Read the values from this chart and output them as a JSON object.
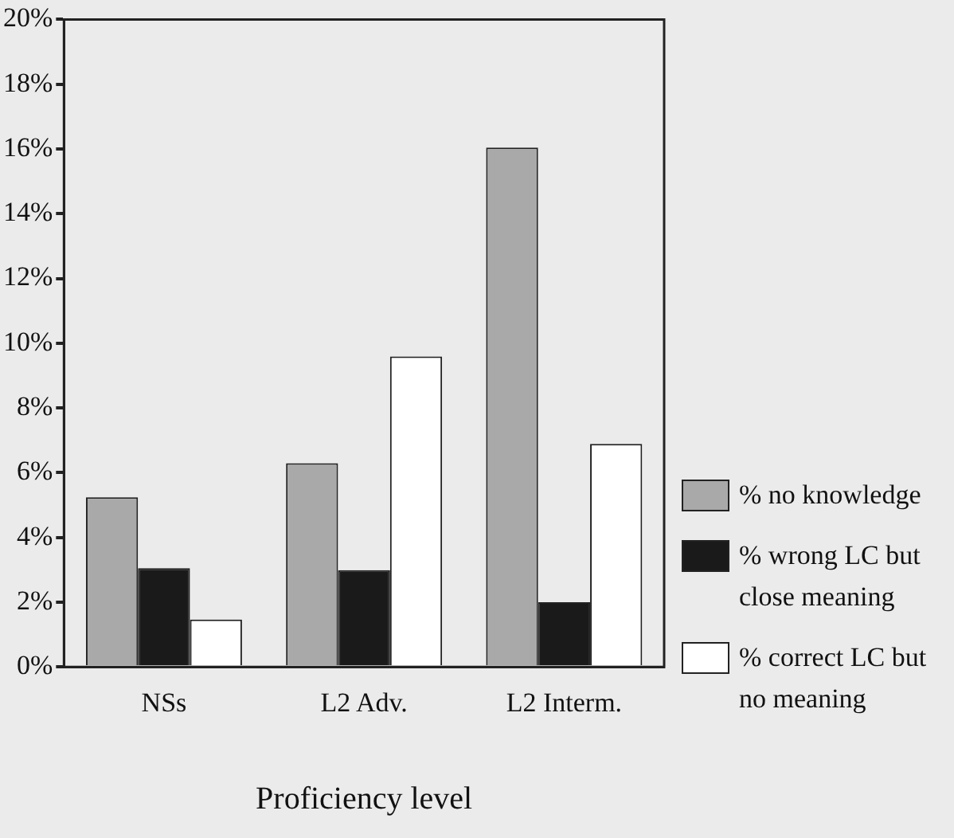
{
  "chart_data": {
    "type": "bar",
    "xlabel": "Proficiency level",
    "categories": [
      "NSs",
      "L2 Adv.",
      "L2 Interm."
    ],
    "series": [
      {
        "name": "% no knowledge",
        "color": "#a9a9a9",
        "values": [
          5.24,
          6.29,
          16.04
        ]
      },
      {
        "name": "% wrong LC but close meaning",
        "color": "#1a1a1a",
        "values": [
          3.05,
          2.99,
          2.0
        ]
      },
      {
        "name": "% correct LC but no meaning",
        "color": "#ffffff",
        "values": [
          1.46,
          9.59,
          6.89
        ]
      }
    ],
    "ylim": [
      0,
      20
    ],
    "yticks": [
      {
        "value": 0,
        "label": "0%"
      },
      {
        "value": 2,
        "label": "2%"
      },
      {
        "value": 4,
        "label": "4%"
      },
      {
        "value": 6,
        "label": "6%"
      },
      {
        "value": 8,
        "label": "8%"
      },
      {
        "value": 10,
        "label": "10%"
      },
      {
        "value": 12,
        "label": "12%"
      },
      {
        "value": 14,
        "label": "14%"
      },
      {
        "value": 16,
        "label": "16%"
      },
      {
        "value": 18,
        "label": "18%"
      },
      {
        "value": 20,
        "label": "20%"
      }
    ],
    "grid": false,
    "legend": "right"
  }
}
